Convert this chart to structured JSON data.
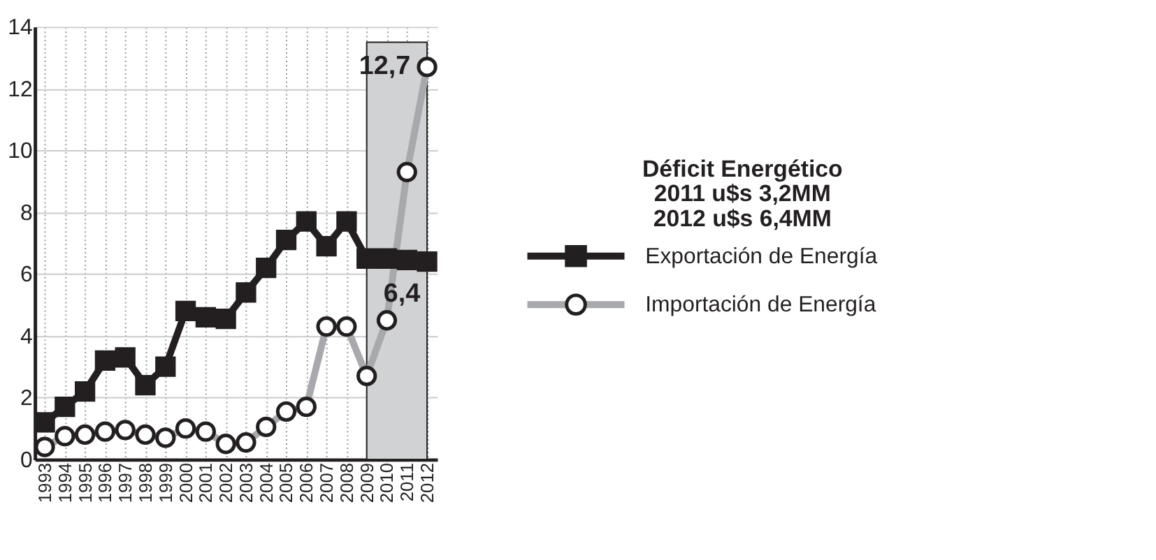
{
  "chart_data": {
    "type": "line",
    "categories": [
      "1993",
      "1994",
      "1995",
      "1996",
      "1997",
      "1998",
      "1999",
      "2000",
      "2001",
      "2002",
      "2003",
      "2004",
      "2005",
      "2006",
      "2007",
      "2008",
      "2009",
      "2010",
      "2011",
      "2012"
    ],
    "series": [
      {
        "name": "Exportación de Energía",
        "color": "#231f20",
        "marker": "square",
        "values": [
          1.2,
          1.7,
          2.2,
          3.2,
          3.3,
          2.4,
          3.0,
          4.8,
          4.6,
          4.55,
          5.4,
          6.2,
          7.1,
          7.7,
          6.9,
          7.7,
          6.5,
          6.5,
          6.45,
          6.4
        ],
        "value_labels": [
          null,
          null,
          null,
          null,
          null,
          null,
          null,
          null,
          null,
          null,
          null,
          null,
          null,
          null,
          null,
          null,
          null,
          null,
          null,
          "6,4"
        ]
      },
      {
        "name": "Importación de Energía",
        "color": "#a7a9ac",
        "marker": "circle",
        "values": [
          0.4,
          0.75,
          0.8,
          0.9,
          0.95,
          0.8,
          0.7,
          1.0,
          0.9,
          0.5,
          0.55,
          1.05,
          1.55,
          1.7,
          4.3,
          4.3,
          2.7,
          4.5,
          9.3,
          12.7
        ],
        "value_labels": [
          null,
          null,
          null,
          null,
          null,
          null,
          null,
          null,
          null,
          null,
          null,
          null,
          null,
          null,
          null,
          null,
          null,
          null,
          null,
          "12,7"
        ]
      }
    ],
    "ylim": [
      0,
      14
    ],
    "yticks": [
      0,
      2,
      4,
      6,
      8,
      10,
      12,
      14
    ],
    "bands": [
      {
        "axis": "x",
        "from": "2009",
        "to": "2012",
        "color": "#d1d2d4"
      }
    ],
    "annotations": [
      "Déficit  Energético",
      "2011 u$s 3,2MM",
      "2012 u$s 6,4MM"
    ],
    "grid": true,
    "legend": "right",
    "line_style": "solid"
  }
}
